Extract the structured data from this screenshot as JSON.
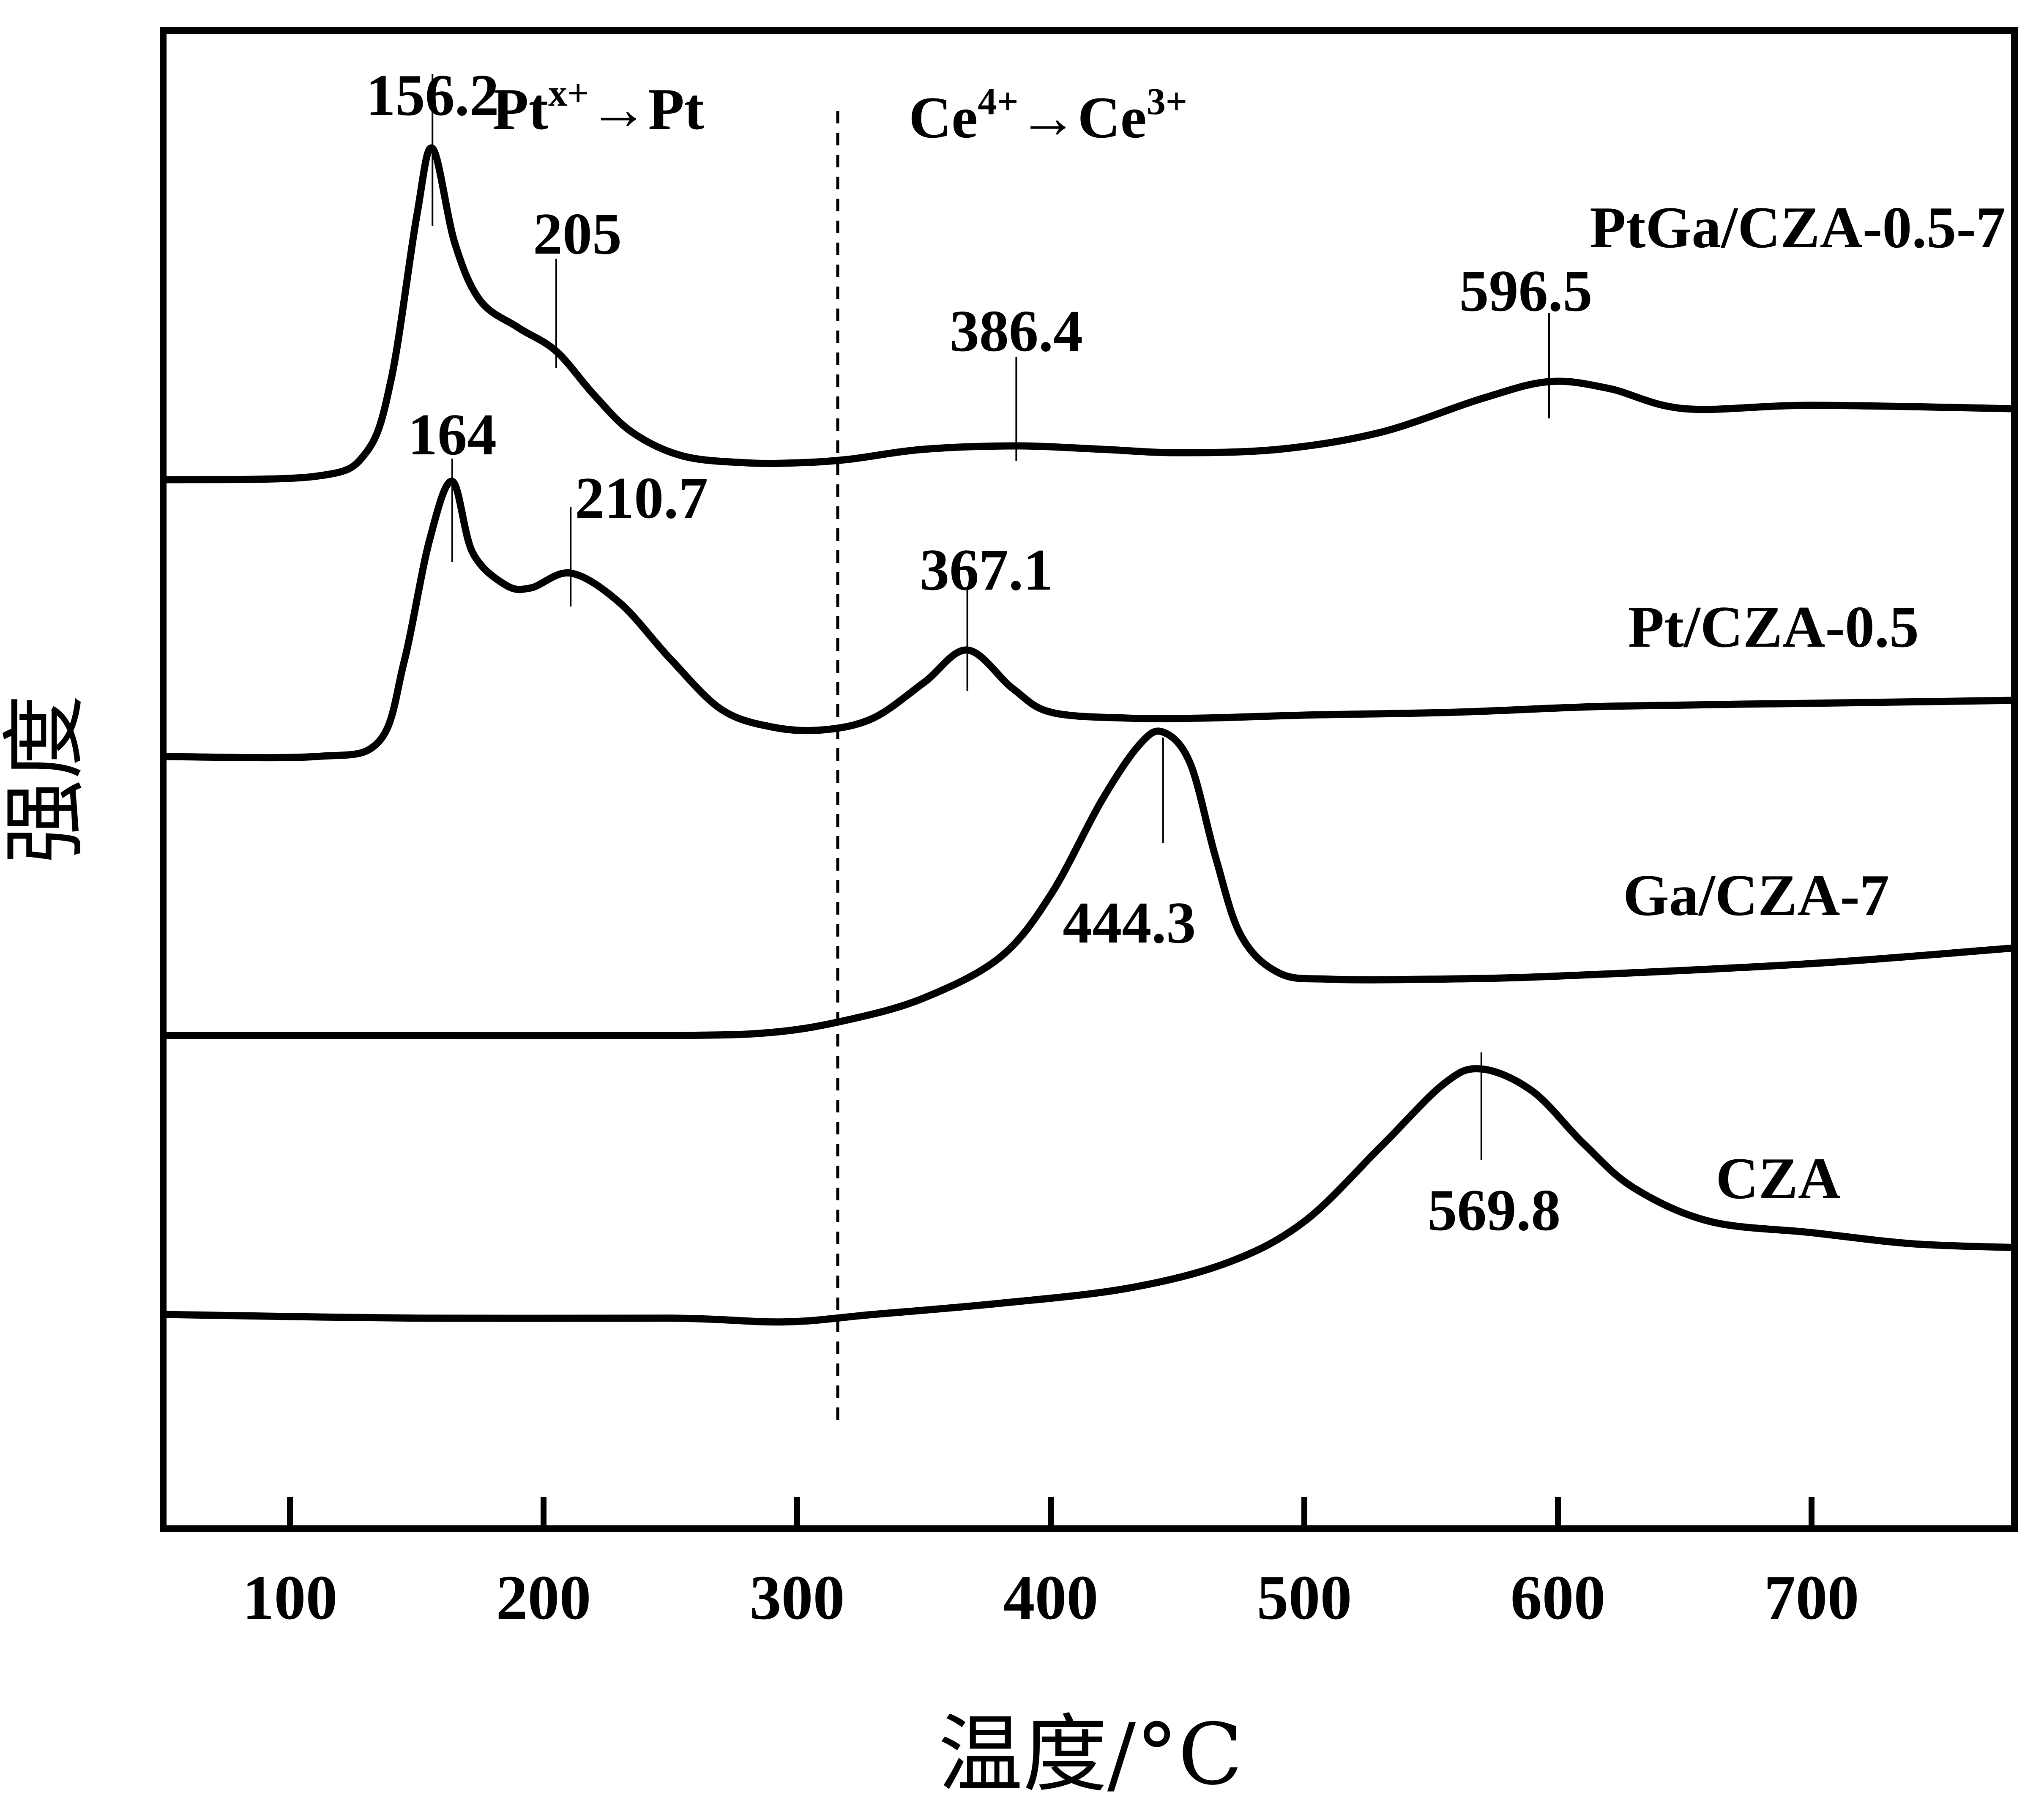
{
  "chart_data": {
    "type": "line",
    "title": "",
    "xlabel": "温度/°C",
    "ylabel": "强度",
    "xlim": [
      50,
      780
    ],
    "x_ticks": [
      100,
      200,
      300,
      400,
      500,
      600,
      700
    ],
    "x_tick_labels": [
      "100",
      "200",
      "300",
      "400",
      "500",
      "600",
      "700"
    ],
    "y_ticks": "none",
    "grid": false,
    "legend": "none (series labeled inline at right)",
    "divider_x": 316,
    "regions": [
      {
        "label_main": "Pt",
        "label_sup": "x+",
        "label_mid": "→Pt",
        "label_sup2": ""
      },
      {
        "label_main": "Ce",
        "label_sup": "4+",
        "label_mid": "→Ce",
        "label_sup2": "3+"
      }
    ],
    "series": [
      {
        "name": "PtGa/CZA-0.5-7",
        "points": [
          [
            50,
            0.0
          ],
          [
            110,
            0.01
          ],
          [
            130,
            0.08
          ],
          [
            140,
            0.3
          ],
          [
            150,
            0.78
          ],
          [
            156.2,
            0.98
          ],
          [
            165,
            0.7
          ],
          [
            175,
            0.53
          ],
          [
            190,
            0.45
          ],
          [
            205,
            0.38
          ],
          [
            220,
            0.25
          ],
          [
            235,
            0.14
          ],
          [
            255,
            0.07
          ],
          [
            280,
            0.05
          ],
          [
            300,
            0.05
          ],
          [
            320,
            0.06
          ],
          [
            350,
            0.09
          ],
          [
            386.4,
            0.1
          ],
          [
            420,
            0.09
          ],
          [
            450,
            0.08
          ],
          [
            490,
            0.09
          ],
          [
            530,
            0.14
          ],
          [
            570,
            0.24
          ],
          [
            596.5,
            0.29
          ],
          [
            620,
            0.27
          ],
          [
            650,
            0.21
          ],
          [
            700,
            0.22
          ],
          [
            780,
            0.21
          ]
        ],
        "peaks": [
          {
            "x": 156.2,
            "label": "156.2"
          },
          {
            "x": 205,
            "label": "205"
          },
          {
            "x": 386.4,
            "label": "386.4"
          },
          {
            "x": 596.5,
            "label": "596.5"
          }
        ]
      },
      {
        "name": "Pt/CZA-0.5",
        "points": [
          [
            50,
            0.0
          ],
          [
            110,
            0.0
          ],
          [
            135,
            0.05
          ],
          [
            145,
            0.32
          ],
          [
            155,
            0.73
          ],
          [
            164,
            0.93
          ],
          [
            172,
            0.69
          ],
          [
            185,
            0.58
          ],
          [
            195,
            0.57
          ],
          [
            210.7,
            0.62
          ],
          [
            230,
            0.52
          ],
          [
            250,
            0.33
          ],
          [
            270,
            0.16
          ],
          [
            290,
            0.1
          ],
          [
            310,
            0.09
          ],
          [
            330,
            0.13
          ],
          [
            350,
            0.25
          ],
          [
            367.1,
            0.36
          ],
          [
            385,
            0.23
          ],
          [
            400,
            0.15
          ],
          [
            430,
            0.13
          ],
          [
            460,
            0.13
          ],
          [
            500,
            0.14
          ],
          [
            560,
            0.15
          ],
          [
            620,
            0.17
          ],
          [
            700,
            0.18
          ],
          [
            780,
            0.19
          ]
        ],
        "peaks": [
          {
            "x": 164,
            "label": "164"
          },
          {
            "x": 210.7,
            "label": "210.7"
          },
          {
            "x": 367.1,
            "label": "367.1"
          }
        ]
      },
      {
        "name": "Ga/CZA-7",
        "points": [
          [
            50,
            0.0
          ],
          [
            150,
            0.0
          ],
          [
            250,
            0.0
          ],
          [
            290,
            0.01
          ],
          [
            320,
            0.05
          ],
          [
            350,
            0.12
          ],
          [
            380,
            0.25
          ],
          [
            400,
            0.45
          ],
          [
            420,
            0.75
          ],
          [
            435,
            0.93
          ],
          [
            444.3,
            0.97
          ],
          [
            455,
            0.87
          ],
          [
            465,
            0.57
          ],
          [
            475,
            0.32
          ],
          [
            490,
            0.2
          ],
          [
            510,
            0.18
          ],
          [
            550,
            0.18
          ],
          [
            600,
            0.19
          ],
          [
            700,
            0.23
          ],
          [
            780,
            0.28
          ]
        ],
        "peaks": [
          {
            "x": 444.3,
            "label": "444.3"
          }
        ]
      },
      {
        "name": "CZA",
        "points": [
          [
            50,
            0.0
          ],
          [
            150,
            -0.01
          ],
          [
            250,
            -0.01
          ],
          [
            295,
            -0.02
          ],
          [
            330,
            0.0
          ],
          [
            380,
            0.03
          ],
          [
            430,
            0.07
          ],
          [
            470,
            0.14
          ],
          [
            500,
            0.25
          ],
          [
            530,
            0.45
          ],
          [
            555,
            0.62
          ],
          [
            569.8,
            0.66
          ],
          [
            590,
            0.6
          ],
          [
            610,
            0.46
          ],
          [
            630,
            0.34
          ],
          [
            660,
            0.25
          ],
          [
            700,
            0.22
          ],
          [
            740,
            0.19
          ],
          [
            780,
            0.18
          ]
        ],
        "peaks": [
          {
            "x": 569.8,
            "label": "569.8"
          }
        ]
      }
    ]
  }
}
